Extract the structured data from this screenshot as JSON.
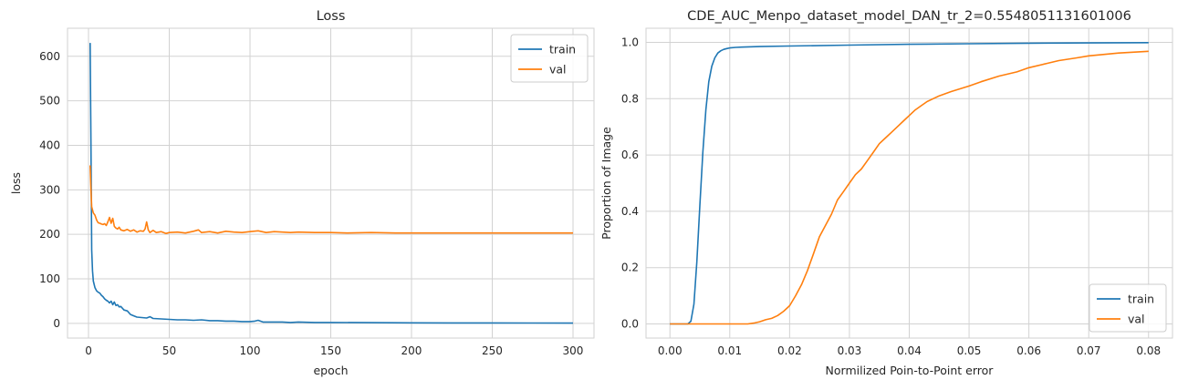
{
  "colors": {
    "train": "#1f77b4",
    "val": "#ff7f0e",
    "grid": "#d2d2d2"
  },
  "chart_data": [
    {
      "type": "line",
      "title": "Loss",
      "xlabel": "epoch",
      "ylabel": "loss",
      "xlim": [
        -13,
        313
      ],
      "ylim": [
        -33,
        663
      ],
      "xticks": [
        0,
        50,
        100,
        150,
        200,
        250,
        300
      ],
      "yticks": [
        0,
        100,
        200,
        300,
        400,
        500,
        600
      ],
      "grid": true,
      "legend": "top-right",
      "series": [
        {
          "name": "train",
          "x": [
            1,
            1.5,
            2,
            2.5,
            3,
            4,
            5,
            6,
            7,
            8,
            9,
            10,
            11,
            12,
            13,
            14,
            15,
            16,
            17,
            18,
            19,
            20,
            22,
            24,
            26,
            28,
            30,
            33,
            36,
            38,
            40,
            45,
            50,
            55,
            60,
            65,
            70,
            75,
            80,
            85,
            90,
            95,
            100,
            103,
            105,
            108,
            110,
            115,
            120,
            125,
            130,
            140,
            150,
            175,
            200,
            225,
            250,
            275,
            300
          ],
          "y": [
            630,
            400,
            165,
            118,
            95,
            80,
            73,
            70,
            68,
            63,
            60,
            55,
            52,
            50,
            46,
            50,
            42,
            48,
            40,
            42,
            37,
            38,
            30,
            28,
            20,
            17,
            14,
            13,
            12,
            15,
            11,
            10,
            9,
            8,
            8,
            7,
            8,
            6,
            6,
            5,
            5,
            4,
            4,
            5,
            7,
            3,
            3,
            3,
            3,
            2,
            3,
            2,
            2,
            1.5,
            1.2,
            1,
            1,
            0.8,
            0.5
          ]
        },
        {
          "name": "val",
          "x": [
            1,
            1.5,
            2,
            3,
            4,
            5,
            6,
            7,
            8,
            9,
            10,
            11,
            12,
            13,
            14,
            15,
            16,
            17,
            18,
            19,
            20,
            22,
            24,
            26,
            28,
            30,
            32,
            34,
            35,
            36,
            37,
            38,
            40,
            42,
            45,
            48,
            50,
            55,
            60,
            65,
            68,
            70,
            75,
            80,
            85,
            90,
            95,
            100,
            105,
            110,
            115,
            120,
            125,
            130,
            140,
            150,
            160,
            175,
            190,
            200,
            225,
            250,
            275,
            300
          ],
          "y": [
            355,
            300,
            262,
            248,
            243,
            232,
            226,
            225,
            223,
            222,
            224,
            220,
            228,
            238,
            225,
            236,
            218,
            214,
            212,
            216,
            210,
            208,
            211,
            207,
            210,
            205,
            208,
            207,
            212,
            228,
            210,
            204,
            209,
            204,
            206,
            202,
            204,
            205,
            203,
            207,
            210,
            204,
            206,
            203,
            207,
            205,
            204,
            206,
            208,
            204,
            206,
            205,
            204,
            205,
            204,
            204,
            203,
            204,
            203,
            203,
            203,
            203,
            203,
            203
          ]
        }
      ]
    },
    {
      "type": "line",
      "title": "CDE_AUC_Menpo_dataset_model_DAN_tr_2=0.5548051131601006",
      "xlabel": "Normilized Poin-to-Point error",
      "ylabel": "Proportion of Image",
      "xlim": [
        -0.004,
        0.084
      ],
      "ylim": [
        -0.05,
        1.05
      ],
      "xticks": [
        0.0,
        0.01,
        0.02,
        0.03,
        0.04,
        0.05,
        0.06,
        0.07,
        0.08
      ],
      "yticks": [
        0.0,
        0.2,
        0.4,
        0.6,
        0.8,
        1.0
      ],
      "grid": true,
      "legend": "bottom-right",
      "series": [
        {
          "name": "train",
          "x": [
            0.0,
            0.003,
            0.0035,
            0.004,
            0.0045,
            0.005,
            0.0055,
            0.006,
            0.0065,
            0.007,
            0.0075,
            0.008,
            0.0085,
            0.009,
            0.0095,
            0.01,
            0.011,
            0.012,
            0.015,
            0.02,
            0.03,
            0.04,
            0.05,
            0.06,
            0.07,
            0.08
          ],
          "y": [
            0.0,
            0.0,
            0.01,
            0.07,
            0.22,
            0.42,
            0.61,
            0.76,
            0.86,
            0.915,
            0.945,
            0.962,
            0.97,
            0.975,
            0.978,
            0.98,
            0.982,
            0.983,
            0.985,
            0.987,
            0.99,
            0.993,
            0.995,
            0.997,
            0.998,
            0.999
          ]
        },
        {
          "name": "val",
          "x": [
            0.0,
            0.013,
            0.014,
            0.015,
            0.016,
            0.017,
            0.018,
            0.019,
            0.02,
            0.021,
            0.022,
            0.023,
            0.024,
            0.025,
            0.026,
            0.027,
            0.028,
            0.029,
            0.03,
            0.031,
            0.032,
            0.033,
            0.034,
            0.035,
            0.036,
            0.037,
            0.038,
            0.039,
            0.04,
            0.041,
            0.042,
            0.043,
            0.045,
            0.047,
            0.05,
            0.052,
            0.055,
            0.058,
            0.06,
            0.063,
            0.065,
            0.068,
            0.07,
            0.075,
            0.08
          ],
          "y": [
            0.0,
            0.0,
            0.003,
            0.008,
            0.015,
            0.02,
            0.03,
            0.045,
            0.065,
            0.1,
            0.14,
            0.19,
            0.25,
            0.31,
            0.35,
            0.39,
            0.44,
            0.47,
            0.5,
            0.53,
            0.55,
            0.58,
            0.61,
            0.64,
            0.66,
            0.68,
            0.7,
            0.72,
            0.74,
            0.76,
            0.775,
            0.79,
            0.81,
            0.825,
            0.845,
            0.86,
            0.88,
            0.895,
            0.91,
            0.925,
            0.935,
            0.945,
            0.952,
            0.962,
            0.968
          ]
        }
      ]
    }
  ]
}
